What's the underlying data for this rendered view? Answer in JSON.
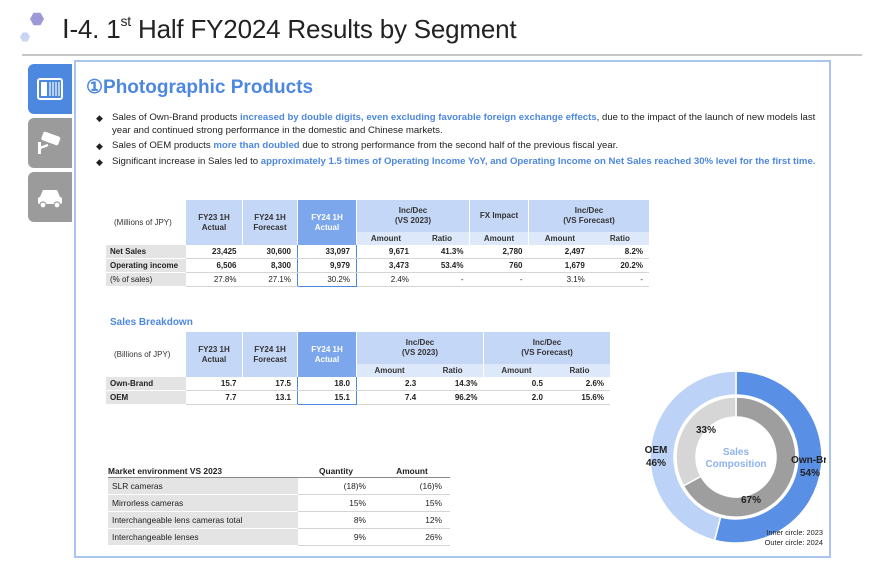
{
  "header": {
    "title_prefix": "Ⅰ-4. 1",
    "title_sup": "st",
    "title_suffix": " Half FY2024 Results by Segment"
  },
  "side_tabs": [
    {
      "name": "camera-icon",
      "active": true
    },
    {
      "name": "security-camera-icon",
      "active": false
    },
    {
      "name": "car-icon",
      "active": false
    }
  ],
  "section": {
    "title": "①Photographic Products"
  },
  "bullets": [
    {
      "parts": [
        {
          "text": "Sales of Own-Brand products ",
          "hl": false
        },
        {
          "text": "increased by double digits, even excluding favorable foreign exchange effects",
          "hl": true
        },
        {
          "text": ", due to the impact of the launch of new models last year and continued strong performance in the domestic and Chinese markets.",
          "hl": false
        }
      ]
    },
    {
      "parts": [
        {
          "text": "Sales of OEM products ",
          "hl": false
        },
        {
          "text": "more than doubled",
          "hl": true
        },
        {
          "text": " due to strong performance from the second half of the previous fiscal year.",
          "hl": false
        }
      ]
    },
    {
      "parts": [
        {
          "text": "Significant increase in Sales led to ",
          "hl": false
        },
        {
          "text": "approximately 1.5 times of Operating Income YoY, and Operating Income on Net Sales reached 30% level for the first time.",
          "hl": true
        }
      ]
    }
  ],
  "results_table": {
    "unit_label": "(Millions of JPY)",
    "headers": {
      "fy23_1h": "FY23 1H\nActual",
      "fy24_1h_fc": "FY24 1H\nForecast",
      "fy24_1h": "FY24 1H\nActual",
      "incdec_2023": "Inc/Dec\n(VS 2023)",
      "fx": "FX Impact",
      "incdec_fc": "Inc/Dec\n(VS Forecast)"
    },
    "subheaders": {
      "amount": "Amount",
      "ratio": "Ratio"
    },
    "rows": [
      {
        "label": "Net Sales",
        "bold": true,
        "cells": [
          "23,425",
          "30,600",
          "33,097",
          "9,671",
          "41.3%",
          "2,780",
          "2,497",
          "8.2%"
        ]
      },
      {
        "label": "Operating income",
        "bold": true,
        "cells": [
          "6,506",
          "8,300",
          "9,979",
          "3,473",
          "53.4%",
          "760",
          "1,679",
          "20.2%"
        ]
      },
      {
        "label": "(% of sales)",
        "bold": false,
        "cells": [
          "27.8%",
          "27.1%",
          "30.2%",
          "2.4%",
          "-",
          "-",
          "3.1%",
          "-"
        ]
      }
    ]
  },
  "breakdown": {
    "title": "Sales Breakdown",
    "unit_label": "(Billions of JPY)",
    "headers": {
      "fy23_1h": "FY23 1H\nActual",
      "fy24_1h_fc": "FY24 1H\nForecast",
      "fy24_1h": "FY24 1H\nActual",
      "incdec_2023": "Inc/Dec\n(VS 2023)",
      "incdec_fc": "Inc/Dec\n(VS Forecast)"
    },
    "subheaders": {
      "amount": "Amount",
      "ratio": "Ratio"
    },
    "rows": [
      {
        "label": "Own-Brand",
        "cells": [
          "15.7",
          "17.5",
          "18.0",
          "2.3",
          "14.3%",
          "0.5",
          "2.6%"
        ]
      },
      {
        "label": "OEM",
        "cells": [
          "7.7",
          "13.1",
          "15.1",
          "7.4",
          "96.2%",
          "2.0",
          "15.6%"
        ]
      }
    ]
  },
  "market": {
    "headers": {
      "label": "Market environment VS 2023",
      "quantity": "Quantity",
      "amount": "Amount"
    },
    "rows": [
      {
        "label": "SLR cameras",
        "quantity": "(18)%",
        "amount": "(16)%"
      },
      {
        "label": "Mirrorless cameras",
        "quantity": "15%",
        "amount": "15%"
      },
      {
        "label": "Interchangeable lens cameras total",
        "quantity": "8%",
        "amount": "12%"
      },
      {
        "label": "Interchangeable lenses",
        "quantity": "9%",
        "amount": "26%"
      }
    ]
  },
  "chart_data": {
    "type": "pie",
    "title": "Sales Composition",
    "inner_circle": {
      "year": "2023",
      "slices": [
        {
          "name": "Own-Brand",
          "value": 67
        },
        {
          "name": "OEM",
          "value": 33
        }
      ]
    },
    "outer_circle": {
      "year": "2024",
      "slices": [
        {
          "name": "Own-Brand",
          "value": 54
        },
        {
          "name": "OEM",
          "value": 46
        }
      ]
    },
    "labels": {
      "inner_own": "67%",
      "inner_oem": "33%",
      "outer_own_name": "Own-Brand",
      "outer_own_pct": "54%",
      "outer_oem_name": "OEM",
      "outer_oem_pct": "46%"
    },
    "colors": {
      "own_outer": "#5a8fe6",
      "oem_outer": "#bcd2f6",
      "own_inner": "#9e9e9e",
      "oem_inner": "#d6d6d6"
    },
    "legend": {
      "inner": "Inner circle: 2023",
      "outer": "Outer circle: 2024"
    }
  }
}
